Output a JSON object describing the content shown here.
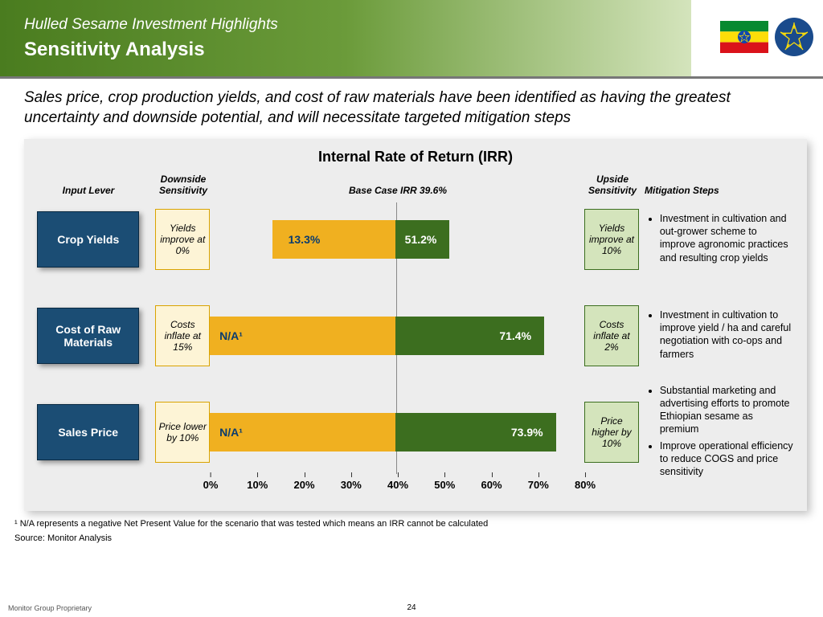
{
  "header": {
    "subtitle": "Hulled Sesame Investment Highlights",
    "title": "Sensitivity Analysis"
  },
  "intro": "Sales price, crop production yields, and cost of raw materials have been identified as having the greatest uncertainty and downside potential, and will necessitate targeted mitigation steps",
  "chart": {
    "title": "Internal Rate of Return (IRR)",
    "headers": {
      "lever": "Input Lever",
      "down": "Downside Sensitivity",
      "base": "Base Case IRR 39.6%",
      "up": "Upside Sensitivity",
      "mitig": "Mitigation Steps"
    },
    "base_irr": 39.6,
    "axis": {
      "min": 0,
      "max": 80,
      "step": 10,
      "ticks": [
        "0%",
        "10%",
        "20%",
        "30%",
        "40%",
        "50%",
        "60%",
        "70%",
        "80%"
      ]
    },
    "colors": {
      "lever_bg": "#1b4d74",
      "down_bar": "#f0b020",
      "down_text": "#0a3c6e",
      "up_bar": "#3c6e1f",
      "down_box_bg": "#fdf4d6",
      "down_box_border": "#d9a300",
      "up_box_bg": "#d4e4bc",
      "up_box_border": "#3c6e1f",
      "panel_bg": "#ededed"
    },
    "rows": [
      {
        "lever": "Crop Yields",
        "down_text": "Yields improve at 0%",
        "down_value": 13.3,
        "down_label": "13.3%",
        "up_text": "Yields improve at 10%",
        "up_value": 51.2,
        "up_label": "51.2%",
        "mitigation": [
          "Investment in cultivation and out-grower scheme to improve agronomic practices and resulting crop yields"
        ]
      },
      {
        "lever": "Cost of Raw Materials",
        "down_text": "Costs inflate at 15%",
        "down_value": 0,
        "down_label": "N/A¹",
        "up_text": "Costs inflate at 2%",
        "up_value": 71.4,
        "up_label": "71.4%",
        "mitigation": [
          "Investment in cultivation to improve yield / ha and careful negotiation with co-ops and farmers"
        ]
      },
      {
        "lever": "Sales Price",
        "down_text": "Price lower by 10%",
        "down_value": 0,
        "down_label": "N/A¹",
        "up_text": "Price higher by 10%",
        "up_value": 73.9,
        "up_label": "73.9%",
        "mitigation": [
          "Substantial marketing and advertising efforts to promote Ethiopian sesame as premium",
          "Improve operational efficiency to reduce COGS and price sensitivity"
        ]
      }
    ]
  },
  "footnote": "¹ N/A represents a negative Net Present Value for the scenario that was tested which means an IRR cannot be calculated",
  "source": "Source: Monitor Analysis",
  "proprietary": "Monitor Group Proprietary",
  "page": "24"
}
